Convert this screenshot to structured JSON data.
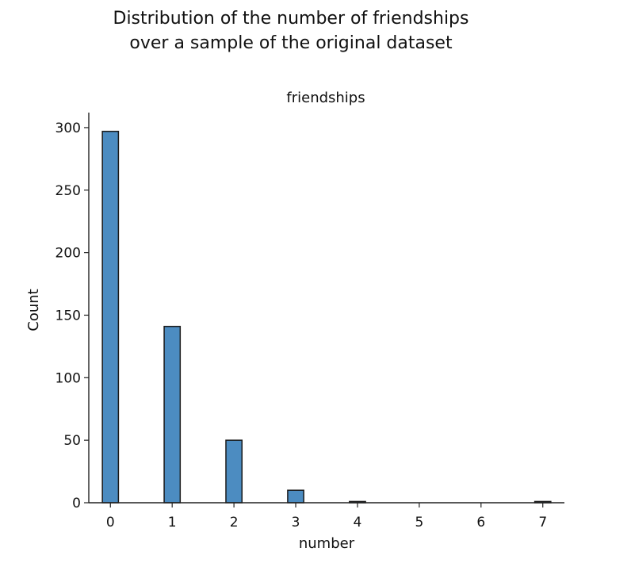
{
  "figure": {
    "title_lines": [
      "Distribution of the number of friendships",
      "over a sample of the original dataset"
    ]
  },
  "chart_data": {
    "type": "bar",
    "subtitle": "friendships",
    "xlabel": "number",
    "ylabel": "Count",
    "x": [
      0,
      1,
      2,
      3,
      4,
      7
    ],
    "values": [
      297,
      141,
      50,
      10,
      1,
      1
    ],
    "xticks": [
      0,
      1,
      2,
      3,
      4,
      5,
      6,
      7
    ],
    "yticks": [
      0,
      50,
      100,
      150,
      200,
      250,
      300
    ],
    "xlim": [
      -0.35,
      7.35
    ],
    "ylim": [
      0,
      312
    ],
    "grid": false,
    "colors": {
      "bar_fill": "#4c8cc1",
      "bar_edge": "#1a1a1a"
    }
  }
}
